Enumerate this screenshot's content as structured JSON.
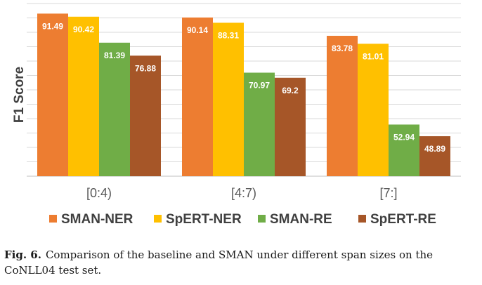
{
  "chart_data": {
    "type": "bar",
    "ylabel": "F1 Score",
    "xlabel": "",
    "categories": [
      "[0:4)",
      "[4:7)",
      "[7:]"
    ],
    "series": [
      {
        "name": "SMAN-NER",
        "color": "#ED7D31",
        "values": [
          91.49,
          90.14,
          83.78
        ],
        "labels": [
          "91.49",
          "90.14",
          "83.78"
        ]
      },
      {
        "name": "SpERT-NER",
        "color": "#FFC000",
        "values": [
          90.42,
          88.31,
          81.01
        ],
        "labels": [
          "90.42",
          "88.31",
          "81.01"
        ]
      },
      {
        "name": "SMAN-RE",
        "color": "#70AD47",
        "values": [
          81.39,
          70.97,
          52.94
        ],
        "labels": [
          "81.39",
          "70.97",
          "52.94"
        ]
      },
      {
        "name": "SpERT-RE",
        "color": "#A65628",
        "values": [
          76.88,
          69.2,
          48.89
        ],
        "labels": [
          "76.88",
          "69.2",
          "48.89"
        ]
      }
    ],
    "ylim": [
      35,
      95
    ],
    "grid": true,
    "legend_position": "bottom"
  },
  "caption": {
    "label": "Fig. 6.",
    "text": "Comparison of the baseline and SMAN under different span sizes on the CoNLL04 test set."
  }
}
